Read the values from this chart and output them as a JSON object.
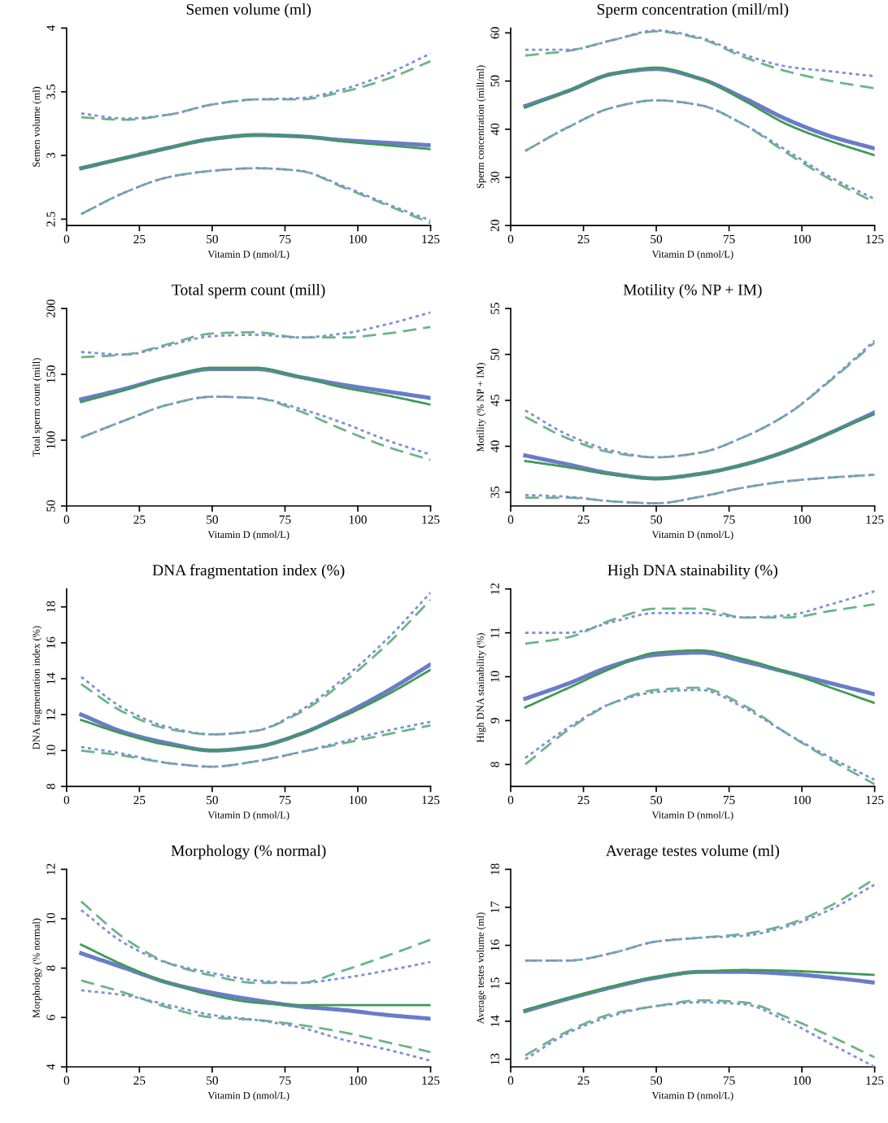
{
  "chart_data": [
    {
      "type": "line",
      "title": "Semen volume (ml)",
      "xlabel": "Vitamin D (nmol/L)",
      "ylabel": "Semen volume (ml)",
      "x": [
        5,
        20,
        35,
        50,
        65,
        80,
        95,
        110,
        125
      ],
      "xlim": [
        0,
        125
      ],
      "xticks": [
        0,
        25,
        50,
        75,
        100,
        125
      ],
      "ylim": [
        2.45,
        4
      ],
      "yticks": [
        2.5,
        3,
        3.5,
        4
      ],
      "grid": false,
      "legend": false,
      "series": [
        {
          "color": "#6a7cc8",
          "line_style": "solid",
          "values": [
            2.9,
            2.98,
            3.06,
            3.13,
            3.16,
            3.15,
            3.12,
            3.1,
            3.08
          ]
        },
        {
          "color": "#3f9a55",
          "line_style": "solid",
          "values": [
            2.9,
            2.98,
            3.06,
            3.13,
            3.16,
            3.15,
            3.11,
            3.08,
            3.05
          ]
        },
        {
          "color": "#8090d8",
          "line_style": "dotted",
          "values": [
            3.33,
            3.29,
            3.32,
            3.4,
            3.44,
            3.45,
            3.52,
            3.64,
            3.8
          ]
        },
        {
          "color": "#6ab587",
          "line_style": "dashed",
          "values": [
            3.3,
            3.28,
            3.32,
            3.4,
            3.44,
            3.44,
            3.5,
            3.6,
            3.74
          ]
        },
        {
          "color": "#8090d8",
          "line_style": "dotted",
          "values": [
            2.54,
            2.71,
            2.83,
            2.88,
            2.9,
            2.88,
            2.76,
            2.62,
            2.49
          ]
        },
        {
          "color": "#6ab587",
          "line_style": "dashed",
          "values": [
            2.54,
            2.71,
            2.83,
            2.88,
            2.9,
            2.88,
            2.75,
            2.61,
            2.47
          ]
        }
      ]
    },
    {
      "type": "line",
      "title": "Sperm concentration (mill/ml)",
      "xlabel": "Vitamin D (nmol/L)",
      "ylabel": "Sperm concentration (mill/ml)",
      "x": [
        5,
        20,
        35,
        50,
        65,
        80,
        95,
        110,
        125
      ],
      "xlim": [
        0,
        125
      ],
      "xticks": [
        0,
        25,
        50,
        75,
        100,
        125
      ],
      "ylim": [
        20,
        61
      ],
      "yticks": [
        20,
        30,
        40,
        50,
        60
      ],
      "grid": false,
      "legend": false,
      "series": [
        {
          "color": "#6a7cc8",
          "line_style": "solid",
          "values": [
            44.8,
            48,
            51.5,
            52.5,
            50.5,
            46.5,
            42,
            38.5,
            36
          ]
        },
        {
          "color": "#3f9a55",
          "line_style": "solid",
          "values": [
            44.5,
            48,
            51.5,
            52.8,
            50.5,
            46,
            41,
            37.5,
            34.6
          ]
        },
        {
          "color": "#8090d8",
          "line_style": "dotted",
          "values": [
            56.5,
            56.5,
            58.5,
            60.5,
            59,
            55.5,
            53,
            52,
            51
          ]
        },
        {
          "color": "#6ab587",
          "line_style": "dashed",
          "values": [
            55.3,
            56.3,
            58.5,
            60.3,
            58.8,
            55,
            52,
            50,
            48.5
          ]
        },
        {
          "color": "#8090d8",
          "line_style": "dotted",
          "values": [
            35.5,
            40.5,
            44.5,
            46,
            45,
            41,
            35.5,
            30,
            25.5
          ]
        },
        {
          "color": "#6ab587",
          "line_style": "dashed",
          "values": [
            35.5,
            40.5,
            44.5,
            46,
            45,
            41,
            35,
            29.5,
            24.8
          ]
        }
      ]
    },
    {
      "type": "line",
      "title": "Total sperm count (mill)",
      "xlabel": "Vitamin D (nmol/L)",
      "ylabel": "Total sperm count (mill)",
      "x": [
        5,
        20,
        35,
        50,
        65,
        80,
        95,
        110,
        125
      ],
      "xlim": [
        0,
        125
      ],
      "xticks": [
        0,
        25,
        50,
        75,
        100,
        125
      ],
      "ylim": [
        50,
        200
      ],
      "yticks": [
        50,
        100,
        150,
        200
      ],
      "grid": false,
      "legend": false,
      "series": [
        {
          "color": "#6a7cc8",
          "line_style": "solid",
          "values": [
            131,
            139,
            148,
            154,
            154,
            148,
            142,
            137,
            132
          ]
        },
        {
          "color": "#3f9a55",
          "line_style": "solid",
          "values": [
            129,
            138,
            148,
            155,
            155,
            148,
            140,
            134,
            127
          ]
        },
        {
          "color": "#8090d8",
          "line_style": "dotted",
          "values": [
            167,
            165,
            172,
            179,
            180,
            178,
            181,
            188,
            197
          ]
        },
        {
          "color": "#6ab587",
          "line_style": "dashed",
          "values": [
            163,
            165,
            173,
            181,
            182,
            178,
            178,
            181,
            186
          ]
        },
        {
          "color": "#8090d8",
          "line_style": "dotted",
          "values": [
            102,
            115,
            127,
            133,
            132,
            124,
            113,
            100,
            89
          ]
        },
        {
          "color": "#6ab587",
          "line_style": "dashed",
          "values": [
            102,
            115,
            127,
            133,
            132,
            122,
            108,
            95,
            85
          ]
        }
      ]
    },
    {
      "type": "line",
      "title": "Motility (% NP + IM)",
      "xlabel": "Vitamin D (nmol/L)",
      "ylabel": "Motility (% NP + IM)",
      "x": [
        5,
        20,
        35,
        50,
        65,
        80,
        95,
        110,
        125
      ],
      "xlim": [
        0,
        125
      ],
      "xticks": [
        0,
        25,
        50,
        75,
        100,
        125
      ],
      "ylim": [
        33.5,
        55
      ],
      "yticks": [
        35,
        40,
        45,
        50,
        55
      ],
      "grid": false,
      "legend": false,
      "series": [
        {
          "color": "#6a7cc8",
          "line_style": "solid",
          "values": [
            39.0,
            38.0,
            37.0,
            36.5,
            37.0,
            38.0,
            39.5,
            41.5,
            43.7
          ]
        },
        {
          "color": "#3f9a55",
          "line_style": "solid",
          "values": [
            38.4,
            37.7,
            36.9,
            36.5,
            37.0,
            38.0,
            39.5,
            41.5,
            43.5
          ]
        },
        {
          "color": "#8090d8",
          "line_style": "dotted",
          "values": [
            43.9,
            41.2,
            39.5,
            38.8,
            39.3,
            41.0,
            43.5,
            47.3,
            51.5
          ]
        },
        {
          "color": "#6ab587",
          "line_style": "dashed",
          "values": [
            43.2,
            40.8,
            39.3,
            38.8,
            39.3,
            41.0,
            43.5,
            47.2,
            51.3
          ]
        },
        {
          "color": "#8090d8",
          "line_style": "dotted",
          "values": [
            34.7,
            34.5,
            34.0,
            33.8,
            34.5,
            35.5,
            36.2,
            36.6,
            36.9
          ]
        },
        {
          "color": "#6ab587",
          "line_style": "dashed",
          "values": [
            34.4,
            34.4,
            34.0,
            33.8,
            34.5,
            35.5,
            36.2,
            36.6,
            36.9
          ]
        }
      ]
    },
    {
      "type": "line",
      "title": "DNA fragmentation index (%)",
      "xlabel": "Vitamin D (nmol/L)",
      "ylabel": "DNA fragmentation index (%)",
      "x": [
        5,
        20,
        35,
        50,
        65,
        80,
        95,
        110,
        125
      ],
      "xlim": [
        0,
        125
      ],
      "xticks": [
        0,
        25,
        50,
        75,
        100,
        125
      ],
      "ylim": [
        8,
        19
      ],
      "yticks": [
        8,
        10,
        12,
        14,
        16,
        18
      ],
      "grid": false,
      "legend": false,
      "series": [
        {
          "color": "#6a7cc8",
          "line_style": "solid",
          "values": [
            12.0,
            11.0,
            10.4,
            10.0,
            10.2,
            10.9,
            12.0,
            13.3,
            14.8
          ]
        },
        {
          "color": "#3f9a55",
          "line_style": "solid",
          "values": [
            11.7,
            10.9,
            10.3,
            10.0,
            10.2,
            10.9,
            11.9,
            13.1,
            14.5
          ]
        },
        {
          "color": "#8090d8",
          "line_style": "dotted",
          "values": [
            14.1,
            12.3,
            11.3,
            10.9,
            11.1,
            12.2,
            14.0,
            16.2,
            18.8
          ]
        },
        {
          "color": "#6ab587",
          "line_style": "dashed",
          "values": [
            13.7,
            12.1,
            11.2,
            10.9,
            11.1,
            12.1,
            13.8,
            15.9,
            18.4
          ]
        },
        {
          "color": "#8090d8",
          "line_style": "dotted",
          "values": [
            10.2,
            9.8,
            9.3,
            9.1,
            9.4,
            9.9,
            10.5,
            11.1,
            11.6
          ]
        },
        {
          "color": "#6ab587",
          "line_style": "dashed",
          "values": [
            10.0,
            9.7,
            9.3,
            9.1,
            9.4,
            9.9,
            10.4,
            10.9,
            11.4
          ]
        }
      ]
    },
    {
      "type": "line",
      "title": "High DNA stainability (%)",
      "xlabel": "Vitamin D (nmol/L)",
      "ylabel": "High DNA stainability (%)",
      "x": [
        5,
        20,
        35,
        50,
        65,
        80,
        95,
        110,
        125
      ],
      "xlim": [
        0,
        125
      ],
      "xticks": [
        0,
        25,
        50,
        75,
        100,
        125
      ],
      "ylim": [
        7.5,
        12
      ],
      "yticks": [
        8,
        9,
        10,
        11,
        12
      ],
      "grid": false,
      "legend": false,
      "series": [
        {
          "color": "#6a7cc8",
          "line_style": "solid",
          "values": [
            9.5,
            9.85,
            10.25,
            10.5,
            10.55,
            10.35,
            10.1,
            9.85,
            9.6
          ]
        },
        {
          "color": "#3f9a55",
          "line_style": "solid",
          "values": [
            9.3,
            9.75,
            10.2,
            10.55,
            10.6,
            10.4,
            10.1,
            9.75,
            9.4
          ]
        },
        {
          "color": "#8090d8",
          "line_style": "dotted",
          "values": [
            11.0,
            11.0,
            11.25,
            11.45,
            11.45,
            11.35,
            11.4,
            11.65,
            11.95
          ]
        },
        {
          "color": "#6ab587",
          "line_style": "dashed",
          "values": [
            10.75,
            10.9,
            11.3,
            11.55,
            11.55,
            11.35,
            11.35,
            11.5,
            11.65
          ]
        },
        {
          "color": "#8090d8",
          "line_style": "dotted",
          "values": [
            8.15,
            8.85,
            9.4,
            9.65,
            9.7,
            9.3,
            8.7,
            8.15,
            7.65
          ]
        },
        {
          "color": "#6ab587",
          "line_style": "dashed",
          "values": [
            8.0,
            8.8,
            9.4,
            9.7,
            9.75,
            9.35,
            8.7,
            8.1,
            7.55
          ]
        }
      ]
    },
    {
      "type": "line",
      "title": "Morphology (% normal)",
      "xlabel": "Vitamin D (nmol/L)",
      "ylabel": "Morphology (% normal)",
      "x": [
        5,
        20,
        35,
        50,
        65,
        80,
        95,
        110,
        125
      ],
      "xlim": [
        0,
        125
      ],
      "xticks": [
        0,
        25,
        50,
        75,
        100,
        125
      ],
      "ylim": [
        4,
        12
      ],
      "yticks": [
        4,
        6,
        8,
        10,
        12
      ],
      "grid": false,
      "legend": false,
      "series": [
        {
          "color": "#6a7cc8",
          "line_style": "solid",
          "values": [
            8.6,
            8.0,
            7.4,
            7.0,
            6.7,
            6.45,
            6.3,
            6.1,
            5.95
          ]
        },
        {
          "color": "#3f9a55",
          "line_style": "solid",
          "values": [
            8.95,
            8.1,
            7.4,
            6.9,
            6.6,
            6.5,
            6.5,
            6.5,
            6.5
          ]
        },
        {
          "color": "#8090d8",
          "line_style": "dotted",
          "values": [
            10.35,
            9.0,
            8.2,
            7.8,
            7.5,
            7.4,
            7.6,
            7.9,
            8.25
          ]
        },
        {
          "color": "#6ab587",
          "line_style": "dashed",
          "values": [
            10.7,
            9.2,
            8.2,
            7.7,
            7.4,
            7.4,
            7.9,
            8.5,
            9.15
          ]
        },
        {
          "color": "#8090d8",
          "line_style": "dotted",
          "values": [
            7.1,
            6.9,
            6.5,
            6.1,
            5.9,
            5.6,
            5.1,
            4.7,
            4.25
          ]
        },
        {
          "color": "#6ab587",
          "line_style": "dashed",
          "values": [
            7.5,
            7.0,
            6.4,
            6.0,
            5.9,
            5.7,
            5.4,
            5.0,
            4.6
          ]
        }
      ]
    },
    {
      "type": "line",
      "title": "Average testes volume (ml)",
      "xlabel": "Vitamin D (nmol/L)",
      "ylabel": "Average testes volume (ml)",
      "x": [
        5,
        20,
        35,
        50,
        65,
        80,
        95,
        110,
        125
      ],
      "xlim": [
        0,
        125
      ],
      "xticks": [
        0,
        25,
        50,
        75,
        100,
        125
      ],
      "ylim": [
        12.8,
        18
      ],
      "yticks": [
        13,
        14,
        15,
        16,
        17,
        18
      ],
      "grid": false,
      "legend": false,
      "series": [
        {
          "color": "#6a7cc8",
          "line_style": "solid",
          "values": [
            14.27,
            14.6,
            14.9,
            15.15,
            15.3,
            15.3,
            15.25,
            15.15,
            15.02
          ]
        },
        {
          "color": "#3f9a55",
          "line_style": "solid",
          "values": [
            14.3,
            14.62,
            14.92,
            15.17,
            15.3,
            15.35,
            15.33,
            15.28,
            15.22
          ]
        },
        {
          "color": "#8090d8",
          "line_style": "dotted",
          "values": [
            15.6,
            15.6,
            15.8,
            16.1,
            16.2,
            16.25,
            16.5,
            16.95,
            17.6
          ]
        },
        {
          "color": "#6ab587",
          "line_style": "dashed",
          "values": [
            15.6,
            15.6,
            15.8,
            16.1,
            16.2,
            16.3,
            16.55,
            17.05,
            17.75
          ]
        },
        {
          "color": "#8090d8",
          "line_style": "dotted",
          "values": [
            13.0,
            13.7,
            14.15,
            14.4,
            14.5,
            14.45,
            14.0,
            13.4,
            12.8
          ]
        },
        {
          "color": "#6ab587",
          "line_style": "dashed",
          "values": [
            13.1,
            13.75,
            14.2,
            14.4,
            14.55,
            14.5,
            14.1,
            13.6,
            13.05
          ]
        }
      ]
    }
  ]
}
